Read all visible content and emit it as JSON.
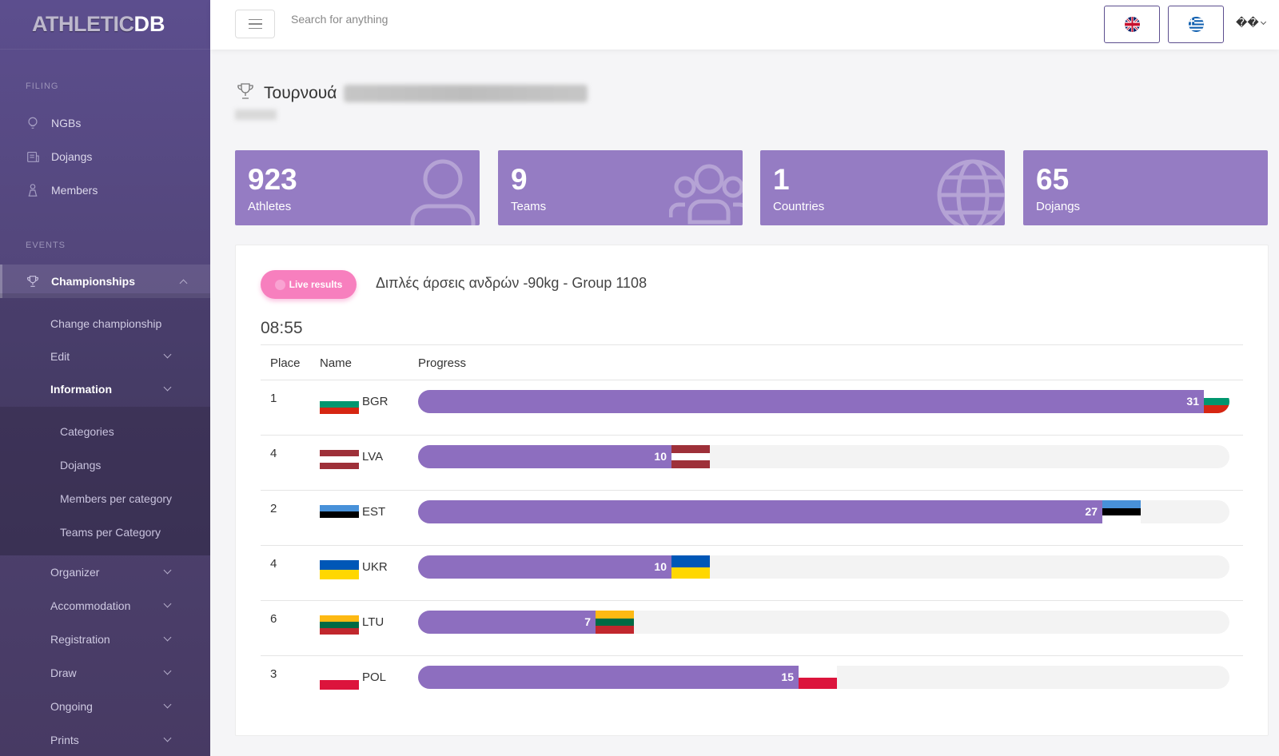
{
  "brand": {
    "part1": "ATHLETIC",
    "part2": "DB"
  },
  "sidebar": {
    "filing_label": "FILING",
    "filing_items": [
      {
        "label": "NGBs",
        "icon": "bulb-icon"
      },
      {
        "label": "Dojangs",
        "icon": "building-icon"
      },
      {
        "label": "Members",
        "icon": "member-icon"
      }
    ],
    "events_label": "EVENTS",
    "championships_label": "Championships",
    "sub_items": {
      "change": "Change championship",
      "edit": "Edit",
      "information": "Information"
    },
    "information_items": [
      "Categories",
      "Dojangs",
      "Members per category",
      "Teams per Category"
    ],
    "more_items": [
      "Organizer",
      "Accommodation",
      "Registration",
      "Draw",
      "Ongoing",
      "Prints"
    ]
  },
  "topbar": {
    "search_placeholder": "Search for anything",
    "user_menu_text": "��",
    "languages": [
      "uk-flag-icon",
      "greek-flag-icon"
    ]
  },
  "page": {
    "title_prefix": "Τουρνουά"
  },
  "stats": [
    {
      "value": "923",
      "label": "Athletes",
      "icon": "user-icon"
    },
    {
      "value": "9",
      "label": "Teams",
      "icon": "team-icon"
    },
    {
      "value": "1",
      "label": "Countries",
      "icon": "globe-icon"
    },
    {
      "value": "65",
      "label": "Dojangs",
      "icon": "none"
    }
  ],
  "live": {
    "button_label": "Live results",
    "group_title": "Διπλές άρσεις ανδρών -90kg - Group 1108",
    "timer": "08:55",
    "columns": {
      "place": "Place",
      "name": "Name",
      "progress": "Progress"
    },
    "progress_max": 32,
    "rows": [
      {
        "place": "1",
        "code": "BGR",
        "value": 31,
        "flag": [
          "#ffffff",
          "#00966e",
          "#d62612"
        ]
      },
      {
        "place": "4",
        "code": "LVA",
        "value": 10,
        "flag": [
          "#9e3039",
          "#ffffff",
          "#9e3039"
        ]
      },
      {
        "place": "2",
        "code": "EST",
        "value": 27,
        "flag": [
          "#4891d9",
          "#000000",
          "#ffffff"
        ]
      },
      {
        "place": "4",
        "code": "UKR",
        "value": 10,
        "flag": [
          "#0057b7",
          "#ffd700"
        ]
      },
      {
        "place": "6",
        "code": "LTU",
        "value": 7,
        "flag": [
          "#fdb913",
          "#006a44",
          "#c1272d"
        ]
      },
      {
        "place": "3",
        "code": "POL",
        "value": 15,
        "flag": [
          "#ffffff",
          "#dc143c"
        ]
      }
    ]
  },
  "colors": {
    "accent": "#8d6ebf",
    "stat_bg": "#957cc3",
    "live_pink": "#f77fbe"
  }
}
